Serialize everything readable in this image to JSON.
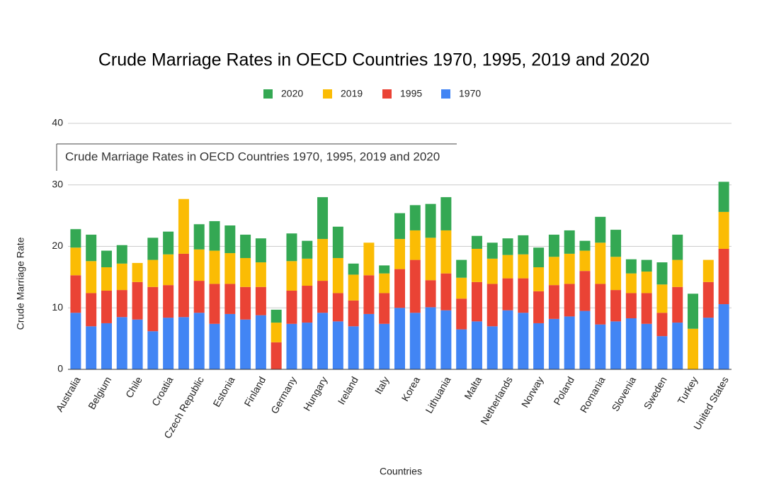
{
  "chart_data": {
    "type": "stacked_bar",
    "title": "Crude Marriage Rates in OECD Countries 1970, 1995, 2019 and 2020",
    "tooltip": "Crude Marriage Rates in OECD Countries 1970, 1995, 2019 and 2020",
    "x_label": "Countries",
    "y_label": "Crude Marriage Rate",
    "categories": [
      "Australia",
      null,
      "Belgium",
      null,
      "Chile",
      null,
      "Croatia",
      null,
      "Czech Republic",
      null,
      "Estonia",
      null,
      "Finland",
      null,
      "Germany",
      null,
      "Hungary",
      null,
      "Ireland",
      null,
      "Italy",
      null,
      "Korea",
      null,
      "Lithuania",
      null,
      "Malta",
      null,
      "Netherlands",
      null,
      "Norway",
      null,
      "Poland",
      null,
      "Romania",
      null,
      "Slovenia",
      null,
      "Sweden",
      null,
      "Turkey",
      null,
      "United States"
    ],
    "series": [
      {
        "name": "2020",
        "color": "#34a853",
        "values": [
          3.0,
          4.3,
          2.7,
          3.0,
          0,
          3.6,
          3.7,
          0,
          4.1,
          4.8,
          4.5,
          3.8,
          3.9,
          2.1,
          4.5,
          2.9,
          6.8,
          5.1,
          1.8,
          0,
          1.3,
          4.2,
          4.1,
          5.5,
          5.4,
          2.9,
          2.1,
          2.6,
          2.7,
          3.1,
          3.2,
          3.6,
          3.8,
          1.6,
          4.2,
          4.4,
          2.3,
          1.9,
          3.6,
          4.1,
          5.7,
          0,
          4.9
        ]
      },
      {
        "name": "2019",
        "color": "#fbbc04",
        "values": [
          4.5,
          5.2,
          3.8,
          4.3,
          3.1,
          4.4,
          5.0,
          8.9,
          5.1,
          5.4,
          5.0,
          4.7,
          4.0,
          3.2,
          4.8,
          4.4,
          6.8,
          5.7,
          4.2,
          5.3,
          3.2,
          4.9,
          4.8,
          6.9,
          7.0,
          3.4,
          5.4,
          4.1,
          3.8,
          3.9,
          3.9,
          4.6,
          4.9,
          3.3,
          6.7,
          5.4,
          3.2,
          3.5,
          4.6,
          4.4,
          6.6,
          3.6,
          6.0
        ]
      },
      {
        "name": "1995",
        "color": "#ea4335",
        "values": [
          6.1,
          5.4,
          5.3,
          4.4,
          6.1,
          7.2,
          5.3,
          10.3,
          5.2,
          6.5,
          4.9,
          5.3,
          4.6,
          4.4,
          5.4,
          6.0,
          5.2,
          4.6,
          4.2,
          6.3,
          5.0,
          6.3,
          8.6,
          4.4,
          6.0,
          5.0,
          6.4,
          6.9,
          5.2,
          5.6,
          5.2,
          5.5,
          5.3,
          6.5,
          6.6,
          5.1,
          4.1,
          5.0,
          3.8,
          5.8,
          0,
          5.8,
          9.0
        ]
      },
      {
        "name": "1970",
        "color": "#4285f4",
        "values": [
          9.2,
          7.0,
          7.5,
          8.5,
          8.1,
          6.2,
          8.4,
          8.5,
          9.2,
          7.4,
          9.0,
          8.1,
          8.8,
          0,
          7.4,
          7.6,
          9.2,
          7.8,
          7.0,
          9.0,
          7.4,
          10.0,
          9.2,
          10.1,
          9.6,
          6.5,
          7.8,
          7.0,
          9.6,
          9.2,
          7.5,
          8.2,
          8.6,
          9.5,
          7.3,
          7.8,
          8.3,
          7.4,
          5.4,
          7.6,
          0,
          8.4,
          10.6
        ]
      }
    ],
    "ylim": [
      0,
      40
    ],
    "yticks": [
      0,
      10,
      20,
      30,
      40
    ],
    "grid": true,
    "legend": "top"
  }
}
